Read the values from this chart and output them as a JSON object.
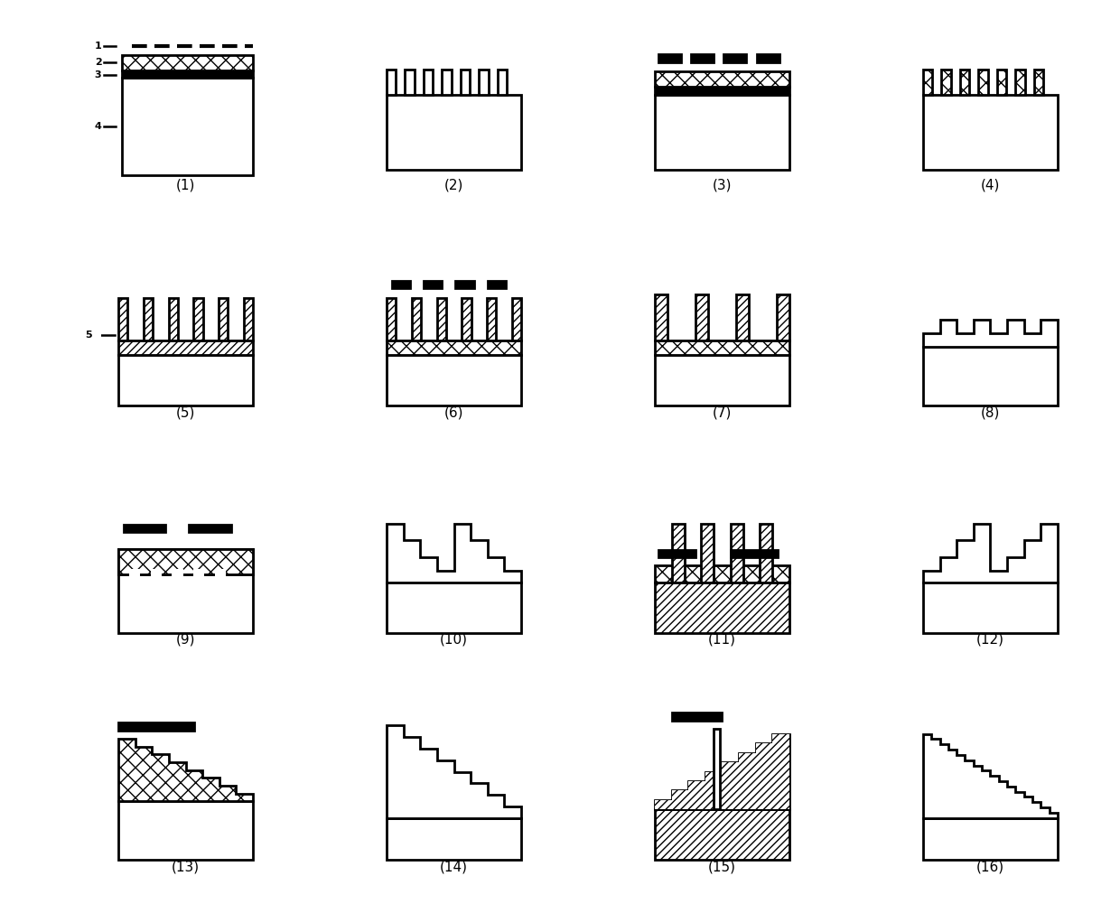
{
  "background": "#ffffff",
  "lw": 2.0,
  "labels": [
    "(1)",
    "(2)",
    "(3)",
    "(4)",
    "(5)",
    "(6)",
    "(7)",
    "(8)",
    "(9)",
    "(10)",
    "(11)",
    "(12)",
    "(13)",
    "(14)",
    "(15)",
    "(16)"
  ],
  "label_fontsize": 11
}
